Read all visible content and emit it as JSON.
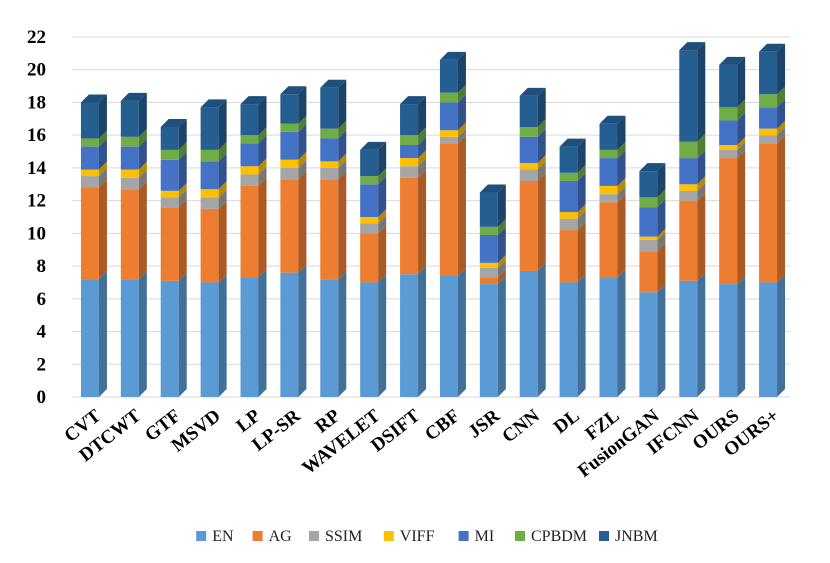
{
  "chart_data": {
    "type": "bar",
    "stacked": true,
    "style": "3d-columns",
    "title": "",
    "xlabel": "",
    "ylabel": "",
    "ylim": [
      0,
      22
    ],
    "yticks": [
      0,
      2,
      4,
      6,
      8,
      10,
      12,
      14,
      16,
      18,
      20,
      22
    ],
    "grid": true,
    "legend_position": "bottom",
    "categories": [
      "CVT",
      "DTCWT",
      "GTF",
      "MSVD",
      "LP",
      "LP-SR",
      "RP",
      "WAVELET",
      "DSIFT",
      "CBF",
      "JSR",
      "CNN",
      "DL",
      "FZL",
      "FusionGAN",
      "IFCNN",
      "OURS",
      "OURS+"
    ],
    "series": [
      {
        "name": "EN",
        "color": "#5B9BD5",
        "values": [
          7.2,
          7.2,
          7.1,
          7.0,
          7.3,
          7.6,
          7.2,
          7.0,
          7.5,
          7.4,
          6.9,
          7.7,
          7.0,
          7.3,
          6.4,
          7.1,
          6.9,
          7.0
        ]
      },
      {
        "name": "AG",
        "color": "#ED7D31",
        "values": [
          5.6,
          5.5,
          4.5,
          4.5,
          5.6,
          5.7,
          6.1,
          3.0,
          5.9,
          8.1,
          0.4,
          5.5,
          3.2,
          4.6,
          2.5,
          4.9,
          7.7,
          8.5
        ]
      },
      {
        "name": "SSIM",
        "color": "#A5A5A5",
        "values": [
          0.7,
          0.7,
          0.6,
          0.7,
          0.7,
          0.7,
          0.7,
          0.6,
          0.7,
          0.4,
          0.6,
          0.7,
          0.7,
          0.5,
          0.7,
          0.6,
          0.5,
          0.5
        ]
      },
      {
        "name": "VIFF",
        "color": "#FFC000",
        "values": [
          0.4,
          0.5,
          0.4,
          0.5,
          0.5,
          0.5,
          0.4,
          0.4,
          0.5,
          0.4,
          0.3,
          0.4,
          0.4,
          0.5,
          0.2,
          0.4,
          0.3,
          0.4
        ]
      },
      {
        "name": "MI",
        "color": "#4472C4",
        "values": [
          1.4,
          1.4,
          1.9,
          1.7,
          1.4,
          1.7,
          1.4,
          2.0,
          0.8,
          1.7,
          1.7,
          1.6,
          1.9,
          1.7,
          1.8,
          1.6,
          1.5,
          1.3
        ]
      },
      {
        "name": "CPBDM",
        "color": "#70AD47",
        "values": [
          0.5,
          0.6,
          0.6,
          0.7,
          0.5,
          0.5,
          0.6,
          0.5,
          0.6,
          0.6,
          0.5,
          0.6,
          0.5,
          0.5,
          0.6,
          1.0,
          0.8,
          0.8
        ]
      },
      {
        "name": "JNBM",
        "color": "#255E91",
        "values": [
          2.2,
          2.2,
          1.4,
          2.6,
          1.9,
          1.8,
          2.5,
          1.6,
          1.9,
          2.0,
          2.1,
          1.9,
          1.6,
          1.6,
          1.6,
          5.6,
          2.6,
          2.6
        ]
      }
    ]
  }
}
